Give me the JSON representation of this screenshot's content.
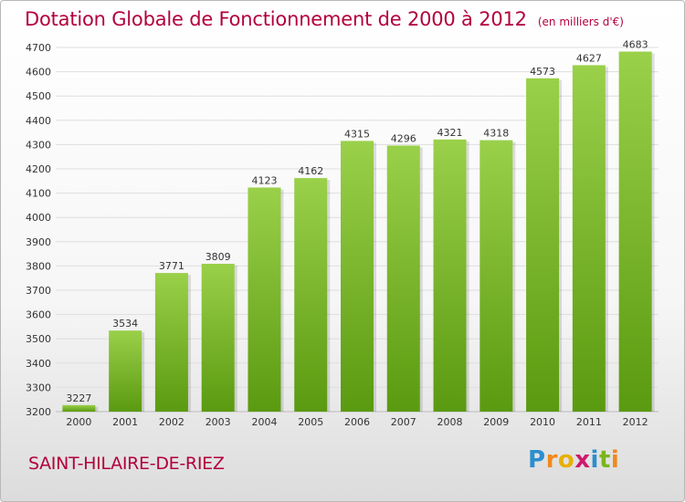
{
  "title": "Dotation Globale de Fonctionnement de 2000 à 2012",
  "unit_note": "(en milliers d'€)",
  "commune": "SAINT-HILAIRE-DE-RIEZ",
  "logo": {
    "letters": [
      "P",
      "r",
      "o",
      "x",
      "i",
      "t",
      "i"
    ],
    "colors": [
      "#2a8fd0",
      "#f08a1c",
      "#e8b000",
      "#d0186e",
      "#2a8fd0",
      "#7ab51d",
      "#f08a1c"
    ]
  },
  "colors": {
    "bar_top": "#9ad04a",
    "bar_bottom": "#5a9a10",
    "title": "#b3003c"
  },
  "chart_data": {
    "type": "bar",
    "categories": [
      "2000",
      "2001",
      "2002",
      "2003",
      "2004",
      "2005",
      "2006",
      "2007",
      "2008",
      "2009",
      "2010",
      "2011",
      "2012"
    ],
    "values": [
      3227,
      3534,
      3771,
      3809,
      4123,
      4162,
      4315,
      4296,
      4321,
      4318,
      4573,
      4627,
      4683
    ],
    "ylim": [
      3200,
      4700
    ],
    "yticks": [
      3200,
      3300,
      3400,
      3500,
      3600,
      3700,
      3800,
      3900,
      4000,
      4100,
      4200,
      4300,
      4400,
      4500,
      4600,
      4700
    ],
    "grid": true,
    "legend": "none"
  }
}
